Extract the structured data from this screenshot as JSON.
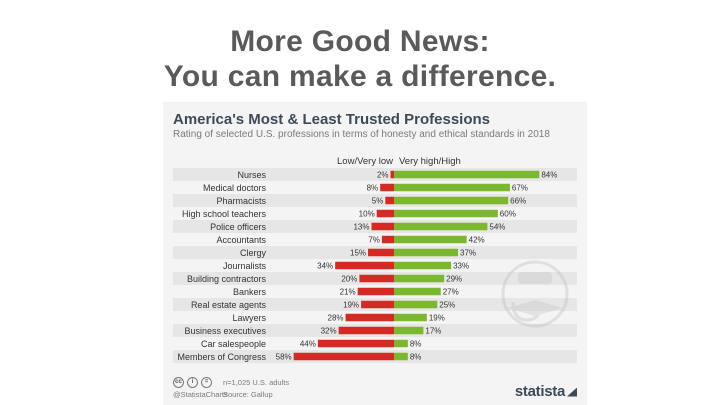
{
  "slide": {
    "title_line1": "More Good News:",
    "title_line2": "You can make a difference."
  },
  "chart_data": {
    "type": "bar",
    "title": "America's Most & Least Trusted Professions",
    "subtitle": "Rating of selected U.S. professions in terms of honesty and ethical standards in 2018",
    "legend": [
      "Low/Very low",
      "Very high/High"
    ],
    "categories": [
      "Nurses",
      "Medical doctors",
      "Pharmacists",
      "High school teachers",
      "Police officers",
      "Accountants",
      "Clergy",
      "Journalists",
      "Building contractors",
      "Bankers",
      "Real estate agents",
      "Lawyers",
      "Business executives",
      "Car salespeople",
      "Members of Congress"
    ],
    "series": [
      {
        "name": "Low/Very low",
        "color": "#d32a24",
        "values": [
          2,
          8,
          5,
          10,
          13,
          7,
          15,
          34,
          20,
          21,
          19,
          28,
          32,
          44,
          58
        ]
      },
      {
        "name": "Very high/High",
        "color": "#7cb82f",
        "values": [
          84,
          67,
          66,
          60,
          54,
          42,
          37,
          33,
          29,
          27,
          25,
          19,
          17,
          8,
          8
        ]
      }
    ],
    "value_suffix": "%",
    "xlim": [
      0,
      100
    ]
  },
  "footer": {
    "sample": "n=1,025 U.S. adults",
    "source": "Source: Gallup",
    "handle": "@StatistaCharts",
    "brand": "statista",
    "cc_icons": [
      "cc",
      "i",
      "="
    ]
  }
}
